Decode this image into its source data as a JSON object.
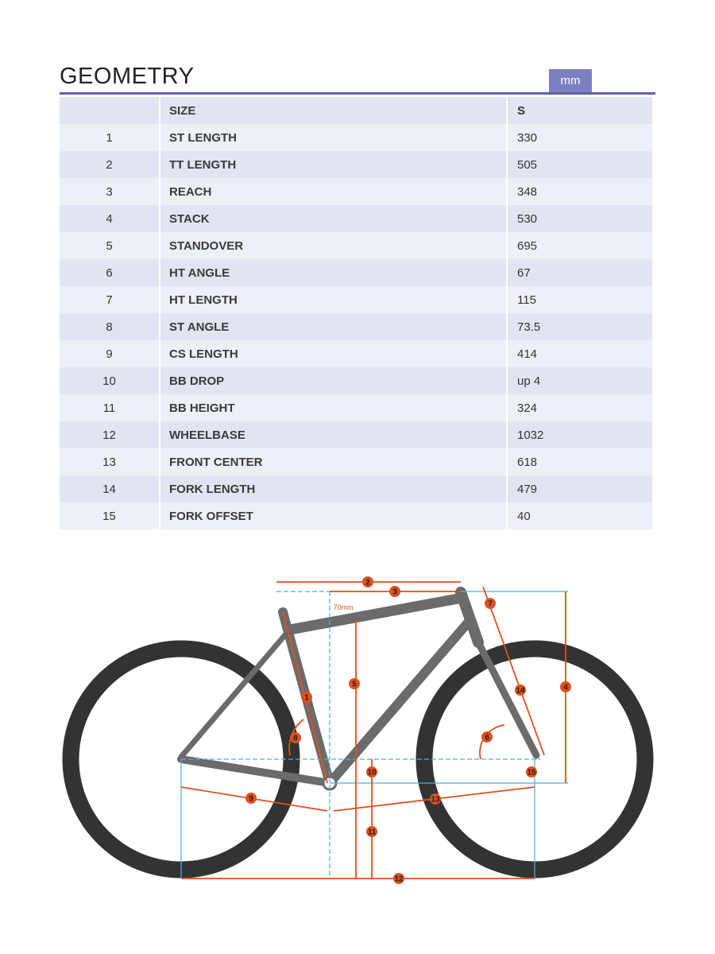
{
  "title": "GEOMETRY",
  "unit": "mm",
  "table": {
    "header": {
      "num": "",
      "label": "SIZE",
      "value": "S"
    },
    "rows": [
      {
        "num": "1",
        "label": "ST LENGTH",
        "value": "330"
      },
      {
        "num": "2",
        "label": "TT LENGTH",
        "value": "505"
      },
      {
        "num": "3",
        "label": "REACH",
        "value": "348"
      },
      {
        "num": "4",
        "label": "STACK",
        "value": "530"
      },
      {
        "num": "5",
        "label": "STANDOVER",
        "value": "695"
      },
      {
        "num": "6",
        "label": "HT ANGLE",
        "value": "67"
      },
      {
        "num": "7",
        "label": "HT LENGTH",
        "value": "115"
      },
      {
        "num": "8",
        "label": "ST ANGLE",
        "value": "73.5"
      },
      {
        "num": "9",
        "label": "CS LENGTH",
        "value": "414"
      },
      {
        "num": "10",
        "label": "BB DROP",
        "value": "up 4"
      },
      {
        "num": "11",
        "label": "BB HEIGHT",
        "value": "324"
      },
      {
        "num": "12",
        "label": "WHEELBASE",
        "value": "1032"
      },
      {
        "num": "13",
        "label": "FRONT CENTER",
        "value": "618"
      },
      {
        "num": "14",
        "label": "FORK LENGTH",
        "value": "479"
      },
      {
        "num": "15",
        "label": "FORK OFFSET",
        "value": "40"
      }
    ]
  },
  "diagram": {
    "offset_label": "70mm",
    "colors": {
      "dimension": "#e0501e",
      "reference": "#3fb8d8",
      "frame": "#6b6b6b",
      "tire": "#333333",
      "accent": "#5b63aa"
    }
  }
}
